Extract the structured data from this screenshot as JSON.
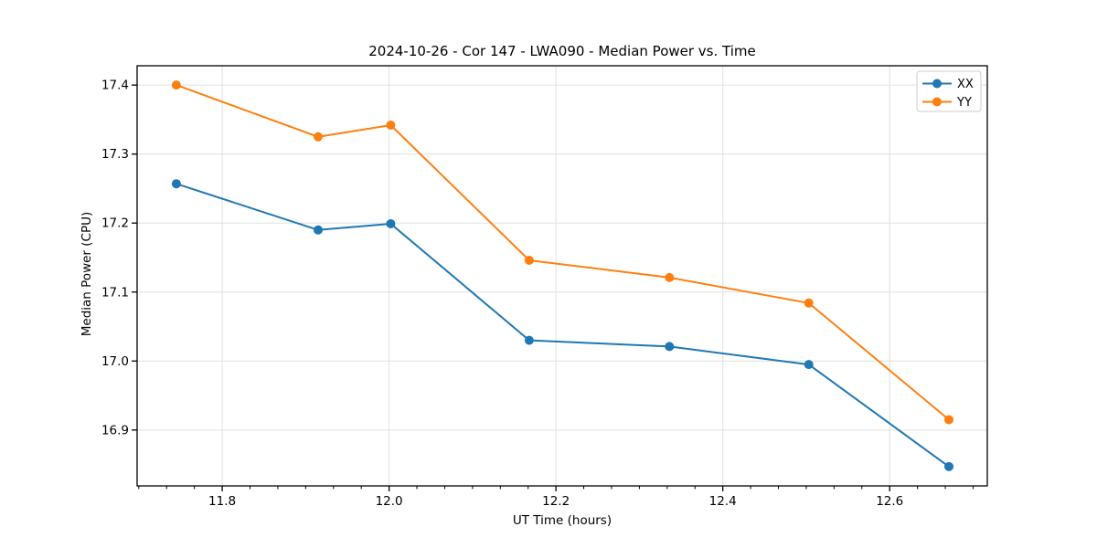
{
  "page": {
    "background": "#ffffff"
  },
  "chart_data": {
    "type": "line",
    "title": "2024-10-26 - Cor 147 - LWA090 - Median Power vs. Time",
    "xlabel": "UT Time (hours)",
    "ylabel": "Median Power (CPU)",
    "x": [
      11.745,
      11.915,
      12.002,
      12.168,
      12.336,
      12.503,
      12.671
    ],
    "series": [
      {
        "name": "XX",
        "color": "#1f77b4",
        "values": [
          17.257,
          17.19,
          17.199,
          17.03,
          17.021,
          16.995,
          16.847
        ]
      },
      {
        "name": "YY",
        "color": "#ff7f0e",
        "values": [
          17.4,
          17.325,
          17.342,
          17.146,
          17.121,
          17.084,
          16.915
        ]
      }
    ],
    "xlim": [
      11.698,
      12.717
    ],
    "ylim": [
      16.819,
      17.428
    ],
    "xticks": [
      11.8,
      12.0,
      12.2,
      12.4,
      12.6
    ],
    "yticks": [
      16.9,
      17.0,
      17.1,
      17.2,
      17.3,
      17.4
    ],
    "x_minor_step": 0.0333333,
    "tick_label_decimals": 1,
    "grid": true,
    "grid_color": "#e0e0e0",
    "axis_color": "#000000",
    "legend": {
      "position": "upper-right",
      "entries": [
        "XX",
        "YY"
      ]
    },
    "line_width": 2,
    "marker": "o",
    "marker_radius": 5
  }
}
